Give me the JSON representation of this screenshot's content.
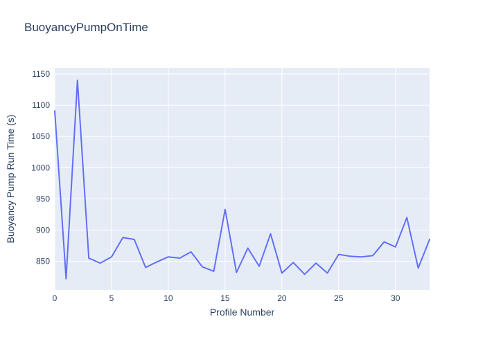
{
  "figure": {
    "title": "BuoyancyPumpOnTime"
  },
  "chart_data": {
    "type": "line",
    "title": "BuoyancyPumpOnTime",
    "xlabel": "Profile Number",
    "ylabel": "Buoyancy Pump Run Time (s)",
    "x": [
      0,
      1,
      2,
      3,
      4,
      5,
      6,
      7,
      8,
      9,
      10,
      11,
      12,
      13,
      14,
      15,
      16,
      17,
      18,
      19,
      20,
      21,
      22,
      23,
      24,
      25,
      26,
      27,
      28,
      29,
      30,
      31,
      32,
      33
    ],
    "y": [
      1091,
      822,
      1140,
      855,
      847,
      857,
      888,
      885,
      840,
      849,
      857,
      855,
      865,
      841,
      834,
      933,
      832,
      871,
      842,
      894,
      831,
      848,
      829,
      847,
      831,
      861,
      858,
      857,
      859,
      881,
      873,
      920,
      839,
      885
    ],
    "xticks": [
      0,
      5,
      10,
      15,
      20,
      25,
      30
    ],
    "yticks": [
      850,
      900,
      950,
      1000,
      1050,
      1100,
      1150
    ],
    "xlim": [
      0,
      33
    ],
    "ylim": [
      804,
      1160
    ],
    "grid": true,
    "legend": false,
    "colors": {
      "line": "#636efa",
      "plot_bg": "#e5ecf6",
      "grid": "#ffffff",
      "text": "#2a3f5f"
    }
  }
}
